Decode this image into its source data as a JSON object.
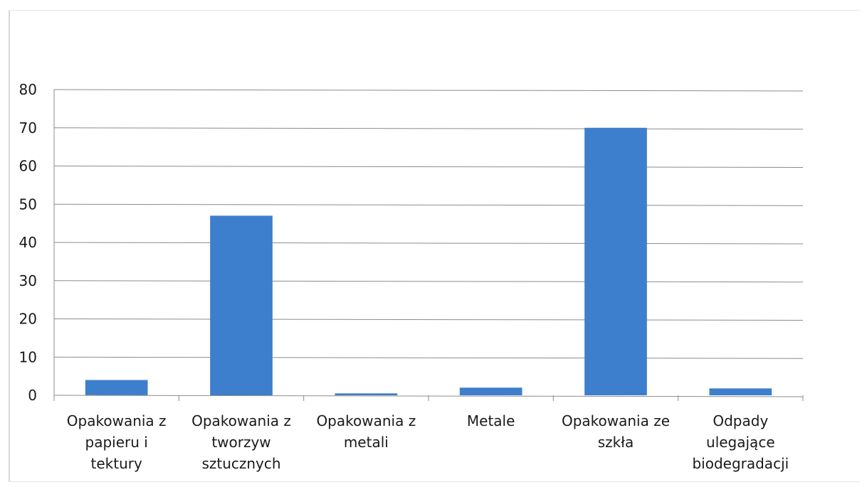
{
  "chart_data": {
    "type": "bar",
    "categories": [
      [
        "Opakowania z",
        "papieru i",
        "tektury"
      ],
      [
        "Opakowania z",
        "tworzyw",
        "sztucznych"
      ],
      [
        "Opakowania z",
        "metali"
      ],
      [
        "Metale"
      ],
      [
        "Opakowania ze",
        "szkła"
      ],
      [
        "Odpady",
        "ulegające",
        "biodegradacji"
      ]
    ],
    "values": [
      4,
      47,
      0.5,
      2,
      70,
      1.8
    ],
    "title": "",
    "xlabel": "",
    "ylabel": "",
    "ylim": [
      0,
      80
    ],
    "yticks": [
      0,
      10,
      20,
      30,
      40,
      50,
      60,
      70,
      80
    ],
    "grid": true,
    "legend": "none",
    "colors": {
      "bar": "#3d7fcc",
      "grid": "#8c8c8c",
      "axis": "#8c8c8c"
    }
  }
}
